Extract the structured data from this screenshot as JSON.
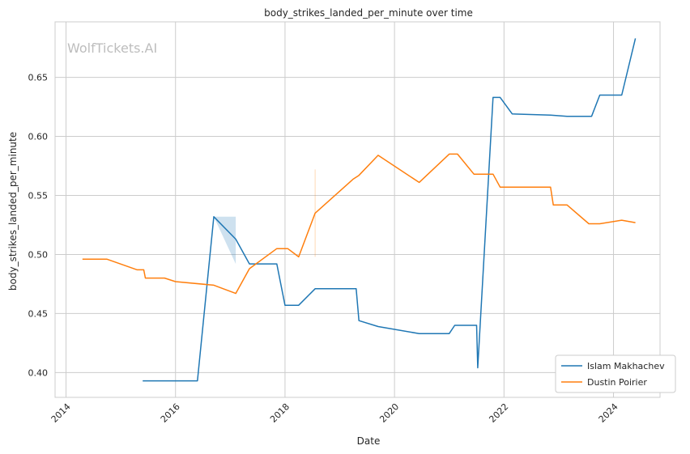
{
  "chart_data": {
    "type": "line",
    "title": "body_strikes_landed_per_minute over time",
    "xlabel": "Date",
    "ylabel": "body_strikes_landed_per_minute",
    "watermark": "WolfTickets.AI",
    "xlim": [
      2013.8,
      2024.85
    ],
    "ylim": [
      0.379,
      0.697
    ],
    "x_ticks": [
      2014,
      2016,
      2018,
      2020,
      2022,
      2024
    ],
    "y_ticks": [
      0.4,
      0.45,
      0.5,
      0.55,
      0.6,
      0.65
    ],
    "x_tick_labels": [
      "2014",
      "2016",
      "2018",
      "2020",
      "2022",
      "2024"
    ],
    "y_tick_labels": [
      "0.40",
      "0.45",
      "0.50",
      "0.55",
      "0.60",
      "0.65"
    ],
    "grid": true,
    "legend_position": "bottom-right",
    "series": [
      {
        "name": "Islam Makhachev",
        "color": "#1f77b4",
        "x": [
          2015.4,
          2016.4,
          2016.7,
          2017.1,
          2017.35,
          2017.85,
          2018.0,
          2018.25,
          2018.55,
          2019.3,
          2019.35,
          2019.7,
          2020.45,
          2021.0,
          2021.1,
          2021.5,
          2021.52,
          2021.8,
          2021.93,
          2022.15,
          2022.85,
          2023.15,
          2023.6,
          2023.75,
          2024.15,
          2024.4
        ],
        "values": [
          0.393,
          0.393,
          0.532,
          0.513,
          0.492,
          0.492,
          0.457,
          0.457,
          0.471,
          0.471,
          0.444,
          0.439,
          0.433,
          0.433,
          0.44,
          0.44,
          0.404,
          0.633,
          0.633,
          0.619,
          0.618,
          0.617,
          0.617,
          0.635,
          0.635,
          0.683
        ],
        "band": {
          "x": [
            2016.7,
            2017.1
          ],
          "upper": [
            0.532,
            0.532
          ],
          "lower": [
            0.532,
            0.492
          ]
        }
      },
      {
        "name": "Dustin Poirier",
        "color": "#ff7f0e",
        "x": [
          2014.3,
          2014.75,
          2015.3,
          2015.42,
          2015.45,
          2015.8,
          2016.0,
          2016.7,
          2017.1,
          2017.35,
          2017.85,
          2018.05,
          2018.25,
          2018.55,
          2019.25,
          2019.35,
          2019.7,
          2020.45,
          2021.0,
          2021.15,
          2021.45,
          2021.8,
          2021.93,
          2022.85,
          2022.9,
          2023.15,
          2023.55,
          2023.75,
          2024.15,
          2024.4
        ],
        "values": [
          0.496,
          0.496,
          0.487,
          0.487,
          0.48,
          0.48,
          0.477,
          0.474,
          0.467,
          0.488,
          0.505,
          0.505,
          0.498,
          0.535,
          0.564,
          0.567,
          0.584,
          0.561,
          0.585,
          0.585,
          0.568,
          0.568,
          0.557,
          0.557,
          0.542,
          0.542,
          0.526,
          0.526,
          0.529,
          0.527
        ],
        "band": {
          "x": [
            2018.55
          ],
          "upper": [
            0.572
          ],
          "lower": [
            0.498
          ]
        }
      }
    ]
  }
}
